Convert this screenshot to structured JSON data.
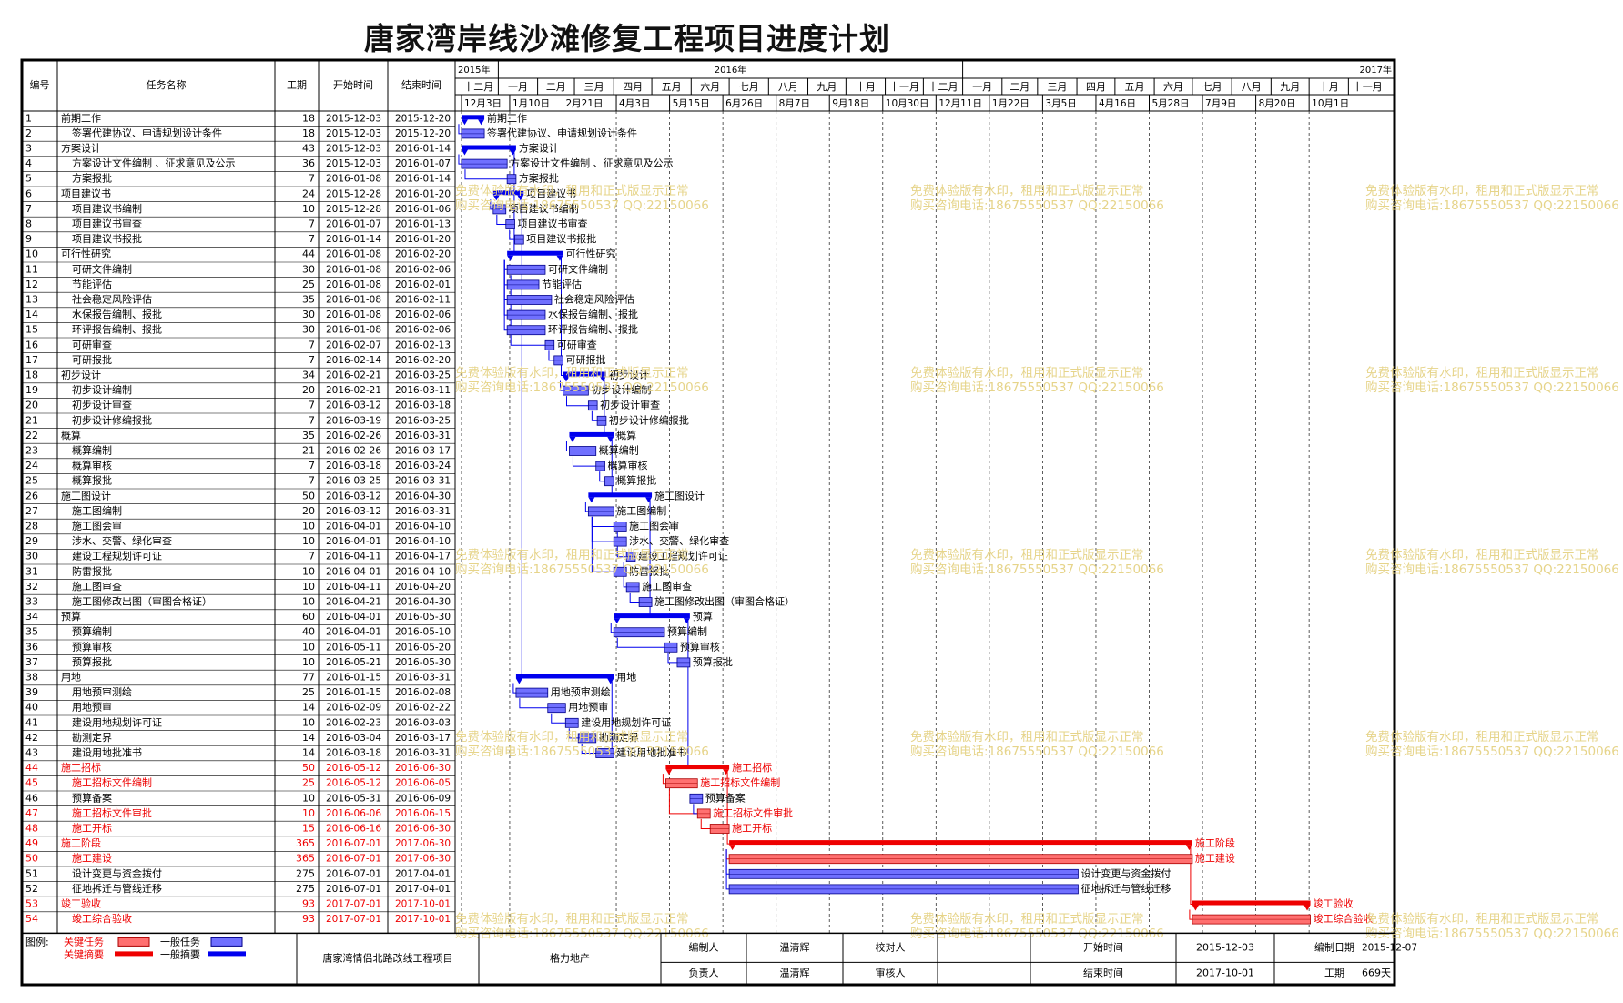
{
  "title": "唐家湾岸线沙滩修复工程项目进度计划",
  "colors": {
    "normal_task": "#7070ff",
    "normal_summary": "#0000ee",
    "critical_task": "#ff7070",
    "critical_summary": "#ee0000",
    "border": "#000000",
    "grid_dash": "#333333",
    "watermark": "#e6d48a",
    "critical_text": "#ee0000"
  },
  "columns": {
    "id": "编号",
    "name": "任务名称",
    "duration": "工期",
    "start": "开始时间",
    "end": "结束时间"
  },
  "timescale": {
    "years": [
      "2015年",
      "2016年",
      "2017年"
    ],
    "months": [
      "十二月",
      "一月",
      "二月",
      "三月",
      "四月",
      "五月",
      "六月",
      "七月",
      "八月",
      "九月",
      "十月",
      "十一月",
      "十二月",
      "一月",
      "二月",
      "三月",
      "四月",
      "五月",
      "六月",
      "七月",
      "八月",
      "九月",
      "十月",
      "十一月"
    ],
    "week_labels": [
      "12月3日",
      "1月10日",
      "2月21日",
      "4月3日",
      "5月15日",
      "6月26日",
      "8月7日",
      "9月18日",
      "10月30日",
      "12月11日",
      "1月22日",
      "3月5日",
      "4月16日",
      "5月28日",
      "7月9日",
      "8月20日",
      "10月1日"
    ]
  },
  "chart_data": {
    "type": "gantt",
    "title": "唐家湾岸线沙滩修复工程项目进度计划",
    "x_range": [
      "2015-11-28",
      "2017-11-30"
    ],
    "tasks": [
      {
        "id": "1",
        "name": "前期工作",
        "duration": "18",
        "start": "2015-12-03",
        "end": "2015-12-20",
        "level": 0,
        "summary": true,
        "critical": false
      },
      {
        "id": "2",
        "name": "签署代建协议、申请规划设计条件",
        "duration": "18",
        "start": "2015-12-03",
        "end": "2015-12-20",
        "level": 1,
        "summary": false,
        "critical": false
      },
      {
        "id": "3",
        "name": "方案设计",
        "duration": "43",
        "start": "2015-12-03",
        "end": "2016-01-14",
        "level": 0,
        "summary": true,
        "critical": false
      },
      {
        "id": "4",
        "name": "方案设计文件编制 、征求意见及公示",
        "duration": "36",
        "start": "2015-12-03",
        "end": "2016-01-07",
        "level": 1,
        "summary": false,
        "critical": false
      },
      {
        "id": "5",
        "name": "方案报批",
        "duration": "7",
        "start": "2016-01-08",
        "end": "2016-01-14",
        "level": 1,
        "summary": false,
        "critical": false
      },
      {
        "id": "6",
        "name": "项目建议书",
        "duration": "24",
        "start": "2015-12-28",
        "end": "2016-01-20",
        "level": 0,
        "summary": true,
        "critical": false
      },
      {
        "id": "7",
        "name": "项目建议书编制",
        "duration": "10",
        "start": "2015-12-28",
        "end": "2016-01-06",
        "level": 1,
        "summary": false,
        "critical": false
      },
      {
        "id": "8",
        "name": "项目建议书审查",
        "duration": "7",
        "start": "2016-01-07",
        "end": "2016-01-13",
        "level": 1,
        "summary": false,
        "critical": false
      },
      {
        "id": "9",
        "name": "项目建议书报批",
        "duration": "7",
        "start": "2016-01-14",
        "end": "2016-01-20",
        "level": 1,
        "summary": false,
        "critical": false
      },
      {
        "id": "10",
        "name": "可行性研究",
        "duration": "44",
        "start": "2016-01-08",
        "end": "2016-02-20",
        "level": 0,
        "summary": true,
        "critical": false
      },
      {
        "id": "11",
        "name": "可研文件编制",
        "duration": "30",
        "start": "2016-01-08",
        "end": "2016-02-06",
        "level": 1,
        "summary": false,
        "critical": false
      },
      {
        "id": "12",
        "name": "节能评估",
        "duration": "25",
        "start": "2016-01-08",
        "end": "2016-02-01",
        "level": 1,
        "summary": false,
        "critical": false
      },
      {
        "id": "13",
        "name": "社会稳定风险评估",
        "duration": "35",
        "start": "2016-01-08",
        "end": "2016-02-11",
        "level": 1,
        "summary": false,
        "critical": false
      },
      {
        "id": "14",
        "name": "水保报告编制、报批",
        "duration": "30",
        "start": "2016-01-08",
        "end": "2016-02-06",
        "level": 1,
        "summary": false,
        "critical": false
      },
      {
        "id": "15",
        "name": "环评报告编制、报批",
        "duration": "30",
        "start": "2016-01-08",
        "end": "2016-02-06",
        "level": 1,
        "summary": false,
        "critical": false
      },
      {
        "id": "16",
        "name": "可研审查",
        "duration": "7",
        "start": "2016-02-07",
        "end": "2016-02-13",
        "level": 1,
        "summary": false,
        "critical": false
      },
      {
        "id": "17",
        "name": "可研报批",
        "duration": "7",
        "start": "2016-02-14",
        "end": "2016-02-20",
        "level": 1,
        "summary": false,
        "critical": false
      },
      {
        "id": "18",
        "name": "初步设计",
        "duration": "34",
        "start": "2016-02-21",
        "end": "2016-03-25",
        "level": 0,
        "summary": true,
        "critical": false
      },
      {
        "id": "19",
        "name": "初步设计编制",
        "duration": "20",
        "start": "2016-02-21",
        "end": "2016-03-11",
        "level": 1,
        "summary": false,
        "critical": false
      },
      {
        "id": "20",
        "name": "初步设计审查",
        "duration": "7",
        "start": "2016-03-12",
        "end": "2016-03-18",
        "level": 1,
        "summary": false,
        "critical": false
      },
      {
        "id": "21",
        "name": "初步设计修编报批",
        "duration": "7",
        "start": "2016-03-19",
        "end": "2016-03-25",
        "level": 1,
        "summary": false,
        "critical": false
      },
      {
        "id": "22",
        "name": "概算",
        "duration": "35",
        "start": "2016-02-26",
        "end": "2016-03-31",
        "level": 0,
        "summary": true,
        "critical": false
      },
      {
        "id": "23",
        "name": "概算编制",
        "duration": "21",
        "start": "2016-02-26",
        "end": "2016-03-17",
        "level": 1,
        "summary": false,
        "critical": false
      },
      {
        "id": "24",
        "name": "概算审核",
        "duration": "7",
        "start": "2016-03-18",
        "end": "2016-03-24",
        "level": 1,
        "summary": false,
        "critical": false
      },
      {
        "id": "25",
        "name": "概算报批",
        "duration": "7",
        "start": "2016-03-25",
        "end": "2016-03-31",
        "level": 1,
        "summary": false,
        "critical": false
      },
      {
        "id": "26",
        "name": "施工图设计",
        "duration": "50",
        "start": "2016-03-12",
        "end": "2016-04-30",
        "level": 0,
        "summary": true,
        "critical": false
      },
      {
        "id": "27",
        "name": "施工图编制",
        "duration": "20",
        "start": "2016-03-12",
        "end": "2016-03-31",
        "level": 1,
        "summary": false,
        "critical": false
      },
      {
        "id": "28",
        "name": "施工图会审",
        "duration": "10",
        "start": "2016-04-01",
        "end": "2016-04-10",
        "level": 1,
        "summary": false,
        "critical": false
      },
      {
        "id": "29",
        "name": "涉水、交警、绿化审查",
        "duration": "10",
        "start": "2016-04-01",
        "end": "2016-04-10",
        "level": 1,
        "summary": false,
        "critical": false
      },
      {
        "id": "30",
        "name": "建设工程规划许可证",
        "duration": "7",
        "start": "2016-04-11",
        "end": "2016-04-17",
        "level": 1,
        "summary": false,
        "critical": false
      },
      {
        "id": "31",
        "name": "防雷报批",
        "duration": "10",
        "start": "2016-04-01",
        "end": "2016-04-10",
        "level": 1,
        "summary": false,
        "critical": false
      },
      {
        "id": "32",
        "name": "施工图审查",
        "duration": "10",
        "start": "2016-04-11",
        "end": "2016-04-20",
        "level": 1,
        "summary": false,
        "critical": false
      },
      {
        "id": "33",
        "name": "施工图修改出图（审图合格证）",
        "duration": "10",
        "start": "2016-04-21",
        "end": "2016-04-30",
        "level": 1,
        "summary": false,
        "critical": false
      },
      {
        "id": "34",
        "name": "预算",
        "duration": "60",
        "start": "2016-04-01",
        "end": "2016-05-30",
        "level": 0,
        "summary": true,
        "critical": false
      },
      {
        "id": "35",
        "name": "预算编制",
        "duration": "40",
        "start": "2016-04-01",
        "end": "2016-05-10",
        "level": 1,
        "summary": false,
        "critical": false
      },
      {
        "id": "36",
        "name": "预算审核",
        "duration": "10",
        "start": "2016-05-11",
        "end": "2016-05-20",
        "level": 1,
        "summary": false,
        "critical": false
      },
      {
        "id": "37",
        "name": "预算报批",
        "duration": "10",
        "start": "2016-05-21",
        "end": "2016-05-30",
        "level": 1,
        "summary": false,
        "critical": false
      },
      {
        "id": "38",
        "name": "用地",
        "duration": "77",
        "start": "2016-01-15",
        "end": "2016-03-31",
        "level": 0,
        "summary": true,
        "critical": false
      },
      {
        "id": "39",
        "name": "用地预审测绘",
        "duration": "25",
        "start": "2016-01-15",
        "end": "2016-02-08",
        "level": 1,
        "summary": false,
        "critical": false
      },
      {
        "id": "40",
        "name": "用地预审",
        "duration": "14",
        "start": "2016-02-09",
        "end": "2016-02-22",
        "level": 1,
        "summary": false,
        "critical": false
      },
      {
        "id": "41",
        "name": "建设用地规划许可证",
        "duration": "10",
        "start": "2016-02-23",
        "end": "2016-03-03",
        "level": 1,
        "summary": false,
        "critical": false
      },
      {
        "id": "42",
        "name": "勘测定界",
        "duration": "14",
        "start": "2016-03-04",
        "end": "2016-03-17",
        "level": 1,
        "summary": false,
        "critical": false
      },
      {
        "id": "43",
        "name": "建设用地批准书",
        "duration": "14",
        "start": "2016-03-18",
        "end": "2016-03-31",
        "level": 1,
        "summary": false,
        "critical": false
      },
      {
        "id": "44",
        "name": "施工招标",
        "duration": "50",
        "start": "2016-05-12",
        "end": "2016-06-30",
        "level": 0,
        "summary": true,
        "critical": true
      },
      {
        "id": "45",
        "name": "施工招标文件编制",
        "duration": "25",
        "start": "2016-05-12",
        "end": "2016-06-05",
        "level": 1,
        "summary": false,
        "critical": true
      },
      {
        "id": "46",
        "name": "预算备案",
        "duration": "10",
        "start": "2016-05-31",
        "end": "2016-06-09",
        "level": 1,
        "summary": false,
        "critical": false
      },
      {
        "id": "47",
        "name": "施工招标文件审批",
        "duration": "10",
        "start": "2016-06-06",
        "end": "2016-06-15",
        "level": 1,
        "summary": false,
        "critical": true
      },
      {
        "id": "48",
        "name": "施工开标",
        "duration": "15",
        "start": "2016-06-16",
        "end": "2016-06-30",
        "level": 1,
        "summary": false,
        "critical": true
      },
      {
        "id": "49",
        "name": "施工阶段",
        "duration": "365",
        "start": "2016-07-01",
        "end": "2017-06-30",
        "level": 0,
        "summary": true,
        "critical": true
      },
      {
        "id": "50",
        "name": "施工建设",
        "duration": "365",
        "start": "2016-07-01",
        "end": "2017-06-30",
        "level": 1,
        "summary": false,
        "critical": true
      },
      {
        "id": "51",
        "name": "设计变更与资金拨付",
        "duration": "275",
        "start": "2016-07-01",
        "end": "2017-04-01",
        "level": 1,
        "summary": false,
        "critical": false
      },
      {
        "id": "52",
        "name": "征地拆迁与管线迁移",
        "duration": "275",
        "start": "2016-07-01",
        "end": "2017-04-01",
        "level": 1,
        "summary": false,
        "critical": false
      },
      {
        "id": "53",
        "name": "竣工验收",
        "duration": "93",
        "start": "2017-07-01",
        "end": "2017-10-01",
        "level": 0,
        "summary": true,
        "critical": true
      },
      {
        "id": "54",
        "name": "竣工综合验收",
        "duration": "93",
        "start": "2017-07-01",
        "end": "2017-10-01",
        "level": 1,
        "summary": false,
        "critical": true
      }
    ]
  },
  "watermark": {
    "line1": "免费体验版有水印，租用和正式版显示正常",
    "line2": "购买咨询电话:18675550537 QQ:22150066"
  },
  "legend": {
    "label": "图例:",
    "critical_task": "关键任务",
    "critical_summary": "关键摘要",
    "normal_task": "一般任务",
    "normal_summary": "一般摘要"
  },
  "footer": {
    "project": "唐家湾情侣北路改线工程项目",
    "company": "格力地产",
    "compiler_label": "编制人",
    "compiler": "温清辉",
    "checker_label": "校对人",
    "checker": "",
    "start_label": "开始时间",
    "start": "2015-12-03",
    "date_label": "编制日期",
    "date": "2015-12-07",
    "owner_label": "负责人",
    "owner": "温清辉",
    "reviewer_label": "审核人",
    "reviewer": "",
    "end_label": "结束时间",
    "end": "2017-10-01",
    "duration_label": "工期",
    "duration": "669天"
  }
}
